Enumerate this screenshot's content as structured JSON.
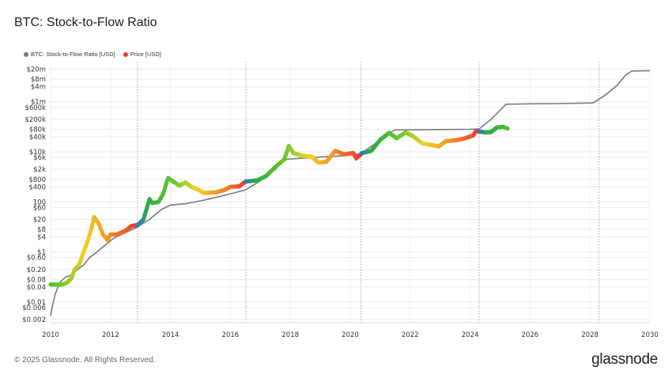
{
  "chart_data": {
    "type": "line",
    "title": "BTC: Stock-to-Flow Ratio",
    "xlabel": "",
    "ylabel": "",
    "y_scale": "log",
    "ylim": [
      0.0015,
      30000000
    ],
    "xlim": [
      2010,
      2030
    ],
    "y_tick_labels": [
      {
        "label": "$20m",
        "v": 20000000
      },
      {
        "label": "$8m",
        "v": 8000000
      },
      {
        "label": "$4m",
        "v": 4000000
      },
      {
        "label": "$1m",
        "v": 1000000
      },
      {
        "label": "$600k",
        "v": 600000
      },
      {
        "label": "$200k",
        "v": 200000
      },
      {
        "label": "$80k",
        "v": 80000
      },
      {
        "label": "$40k",
        "v": 40000
      },
      {
        "label": "$10k",
        "v": 10000
      },
      {
        "label": "$6k",
        "v": 6000
      },
      {
        "label": "$2k",
        "v": 2000
      },
      {
        "label": "$800",
        "v": 800
      },
      {
        "label": "$400",
        "v": 400
      },
      {
        "label": "100",
        "v": 100
      },
      {
        "label": "$60",
        "v": 60
      },
      {
        "label": "$20",
        "v": 20
      },
      {
        "label": "$8",
        "v": 8
      },
      {
        "label": "$4",
        "v": 4
      },
      {
        "label": "$1",
        "v": 1
      },
      {
        "label": "$0.60",
        "v": 0.6
      },
      {
        "label": "$0.20",
        "v": 0.2
      },
      {
        "label": "$0.08",
        "v": 0.08
      },
      {
        "label": "$0.04",
        "v": 0.04
      },
      {
        "label": "$0.01",
        "v": 0.01
      },
      {
        "label": "$0.006",
        "v": 0.006
      },
      {
        "label": "$0.002",
        "v": 0.002
      }
    ],
    "x_ticks": [
      2010,
      2012,
      2014,
      2016,
      2018,
      2020,
      2022,
      2024,
      2026,
      2028,
      2030
    ],
    "halvings": [
      2012.9,
      2016.52,
      2020.36,
      2024.3,
      2028.3
    ],
    "grid": true,
    "legend_position": "top-left",
    "series": [
      {
        "name": "BTC: Stock-to-Flow Ratio [USD]",
        "color": "#7a7a7a",
        "points": [
          [
            2010.0,
            0.0028
          ],
          [
            2010.05,
            0.006
          ],
          [
            2010.15,
            0.02
          ],
          [
            2010.3,
            0.06
          ],
          [
            2010.5,
            0.1
          ],
          [
            2010.7,
            0.12
          ],
          [
            2010.9,
            0.2
          ],
          [
            2011.1,
            0.3
          ],
          [
            2011.3,
            0.6
          ],
          [
            2011.5,
            0.9
          ],
          [
            2011.8,
            1.8
          ],
          [
            2012.1,
            3.5
          ],
          [
            2012.5,
            6
          ],
          [
            2012.9,
            10
          ],
          [
            2013.3,
            20
          ],
          [
            2013.7,
            50
          ],
          [
            2014.0,
            75
          ],
          [
            2014.5,
            85
          ],
          [
            2015.0,
            110
          ],
          [
            2015.5,
            150
          ],
          [
            2016.0,
            210
          ],
          [
            2016.5,
            300
          ],
          [
            2017.0,
            700
          ],
          [
            2017.5,
            2000
          ],
          [
            2017.8,
            5000
          ],
          [
            2018.3,
            5500
          ],
          [
            2019.0,
            6200
          ],
          [
            2019.8,
            7000
          ],
          [
            2020.36,
            8500
          ],
          [
            2020.8,
            20000
          ],
          [
            2021.2,
            50000
          ],
          [
            2021.5,
            75000
          ],
          [
            2022.0,
            76000
          ],
          [
            2023.0,
            78000
          ],
          [
            2024.0,
            80000
          ],
          [
            2024.3,
            82000
          ],
          [
            2024.7,
            200000
          ],
          [
            2025.2,
            800000
          ],
          [
            2026.0,
            830000
          ],
          [
            2027.0,
            850000
          ],
          [
            2028.1,
            900000
          ],
          [
            2028.5,
            1800000
          ],
          [
            2028.9,
            4500000
          ],
          [
            2029.2,
            12000000
          ],
          [
            2029.4,
            17000000
          ],
          [
            2030.0,
            17500000
          ]
        ]
      },
      {
        "name": "Price [USD]",
        "color": "#e0412a",
        "points": [
          [
            2010.0,
            0.05
          ],
          [
            2010.2,
            0.05
          ],
          [
            2010.4,
            0.05
          ],
          [
            2010.55,
            0.06
          ],
          [
            2010.7,
            0.09
          ],
          [
            2010.8,
            0.2
          ],
          [
            2010.95,
            0.3
          ],
          [
            2011.1,
            1.0
          ],
          [
            2011.25,
            3
          ],
          [
            2011.38,
            10
          ],
          [
            2011.45,
            25
          ],
          [
            2011.6,
            14
          ],
          [
            2011.75,
            5
          ],
          [
            2011.9,
            3
          ],
          [
            2012.0,
            5
          ],
          [
            2012.2,
            5
          ],
          [
            2012.5,
            7
          ],
          [
            2012.7,
            11
          ],
          [
            2012.9,
            12
          ],
          [
            2013.1,
            20
          ],
          [
            2013.3,
            130
          ],
          [
            2013.4,
            90
          ],
          [
            2013.6,
            100
          ],
          [
            2013.75,
            200
          ],
          [
            2013.92,
            900
          ],
          [
            2014.1,
            650
          ],
          [
            2014.3,
            450
          ],
          [
            2014.5,
            600
          ],
          [
            2014.7,
            400
          ],
          [
            2014.9,
            320
          ],
          [
            2015.1,
            230
          ],
          [
            2015.5,
            240
          ],
          [
            2015.8,
            300
          ],
          [
            2016.0,
            400
          ],
          [
            2016.3,
            420
          ],
          [
            2016.5,
            650
          ],
          [
            2016.9,
            730
          ],
          [
            2017.2,
            1100
          ],
          [
            2017.5,
            2500
          ],
          [
            2017.8,
            5000
          ],
          [
            2017.95,
            17000
          ],
          [
            2018.1,
            9000
          ],
          [
            2018.4,
            7000
          ],
          [
            2018.7,
            6500
          ],
          [
            2018.95,
            3700
          ],
          [
            2019.2,
            4000
          ],
          [
            2019.5,
            11000
          ],
          [
            2019.8,
            8000
          ],
          [
            2020.1,
            9000
          ],
          [
            2020.2,
            5500
          ],
          [
            2020.4,
            9000
          ],
          [
            2020.7,
            11000
          ],
          [
            2021.0,
            30000
          ],
          [
            2021.3,
            58000
          ],
          [
            2021.55,
            35000
          ],
          [
            2021.85,
            60000
          ],
          [
            2022.1,
            42000
          ],
          [
            2022.4,
            22000
          ],
          [
            2022.7,
            19000
          ],
          [
            2022.95,
            16500
          ],
          [
            2023.2,
            27000
          ],
          [
            2023.5,
            29000
          ],
          [
            2023.8,
            34000
          ],
          [
            2024.1,
            45000
          ],
          [
            2024.2,
            68000
          ],
          [
            2024.5,
            60000
          ],
          [
            2024.7,
            62000
          ],
          [
            2024.9,
            95000
          ],
          [
            2025.1,
            100000
          ],
          [
            2025.25,
            85000
          ]
        ]
      }
    ]
  },
  "legend": [
    {
      "label": "BTC: Stock-to-Flow Ratio [USD]",
      "color": "#7a7a7a"
    },
    {
      "label": "Price [USD]",
      "color": "#e0412a"
    }
  ],
  "footer": "© 2025 Glassnode. All Rights Reserved.",
  "brand": "glassnode"
}
